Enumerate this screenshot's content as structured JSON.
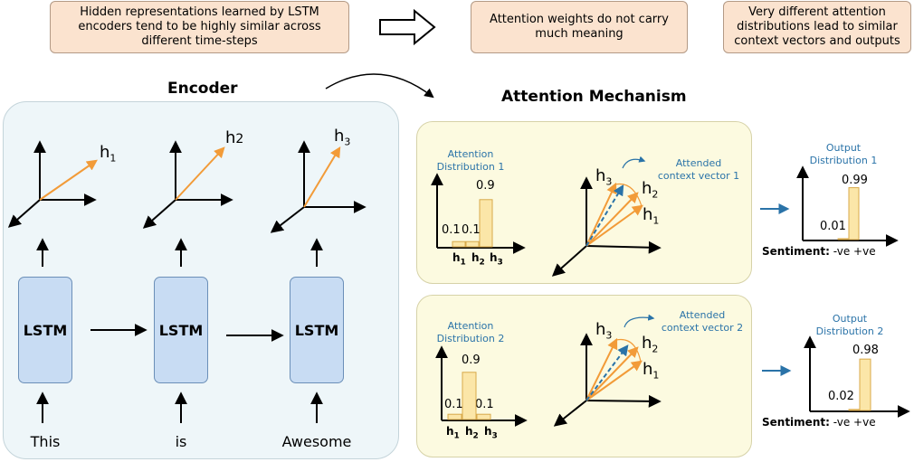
{
  "notes": {
    "lstm_similarity": "Hidden representations learned by LSTM encoders tend to be highly similar across different time-steps",
    "weights_meaning": "Attention weights do not carry much meaning",
    "different_distributions": "Very different attention distributions lead to similar context vectors and outputs"
  },
  "encoder": {
    "title": "Encoder",
    "hidden": [
      {
        "name": "h",
        "sub": "1"
      },
      {
        "name": "h",
        "sub": "2"
      },
      {
        "name": "h",
        "sub": "3"
      }
    ],
    "cells": [
      "LSTM",
      "LSTM",
      "LSTM"
    ],
    "words": [
      "This",
      "is",
      "Awesome"
    ]
  },
  "attention": {
    "title": "Attention Mechanism",
    "panels": [
      {
        "dist_label": [
          "Attention",
          "Distribution 1"
        ],
        "weights": [
          0.1,
          0.1,
          0.9
        ],
        "weight_labels": [
          "0.1",
          "0.1",
          "0.9"
        ],
        "bar_labels": [
          "h",
          "h",
          "h"
        ],
        "bar_subs": [
          "1",
          "2",
          "3"
        ],
        "context_label": [
          "Attended",
          "context vector 1"
        ],
        "vector_labels": [
          "h",
          "h",
          "h"
        ],
        "vector_subs": [
          "3",
          "2",
          "1"
        ]
      },
      {
        "dist_label": [
          "Attention",
          "Distribution 2"
        ],
        "weights": [
          0.1,
          0.9,
          0.1
        ],
        "weight_labels": [
          "0.1",
          "0.9",
          "0.1"
        ],
        "bar_labels": [
          "h",
          "h",
          "h"
        ],
        "bar_subs": [
          "1",
          "2",
          "3"
        ],
        "context_label": [
          "Attended",
          "context vector 2"
        ],
        "vector_labels": [
          "h",
          "h",
          "h"
        ],
        "vector_subs": [
          "3",
          "2",
          "1"
        ]
      }
    ]
  },
  "outputs": [
    {
      "label": [
        "Output",
        "Distribution 1"
      ],
      "values": [
        0.01,
        0.99
      ],
      "value_labels": [
        "0.01",
        "0.99"
      ],
      "sentiment_key": "Sentiment:",
      "sentiment_classes": "-ve +ve"
    },
    {
      "label": [
        "Output",
        "Distribution 2"
      ],
      "values": [
        0.02,
        0.98
      ],
      "value_labels": [
        "0.02",
        "0.98"
      ],
      "sentiment_key": "Sentiment:",
      "sentiment_classes": "-ve +ve"
    }
  ],
  "colors": {
    "note_fill": "#fbe3cf",
    "encoder_fill": "#eef6f9",
    "lstm_fill": "#c8dcf3",
    "attention_fill": "#fcfae0",
    "bar_fill": "#fbe6a8",
    "vector_orange": "#f29b38",
    "accent_blue": "#2a73a8"
  }
}
